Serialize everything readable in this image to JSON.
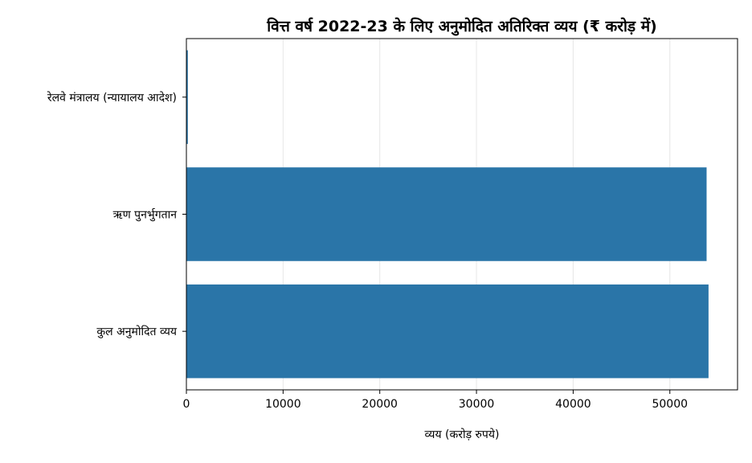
{
  "colors": {
    "bar": "#2a75a8",
    "grid": "#e6e6e6",
    "axis": "#000000",
    "background": "#ffffff"
  },
  "chart_data": {
    "type": "bar",
    "orientation": "horizontal",
    "title": "वित्त वर्ष 2022-23 के लिए अनुमोदित अतिरिक्त व्यय (₹ करोड़ में)",
    "xlabel": "व्यय (करोड़ रुपये)",
    "ylabel": "",
    "categories": [
      "रेलवे मंत्रालय (न्यायालय आदेश)",
      "ऋण पुनर्भुगतान",
      "कुल अनुमोदित व्यय"
    ],
    "values": [
      150,
      53800,
      54000
    ],
    "xlim": [
      0,
      57000
    ],
    "xticks": [
      0,
      10000,
      20000,
      30000,
      40000,
      50000
    ],
    "xtick_labels": [
      "0",
      "10000",
      "20000",
      "30000",
      "40000",
      "50000"
    ],
    "grid": "x-major",
    "legend": "none"
  }
}
